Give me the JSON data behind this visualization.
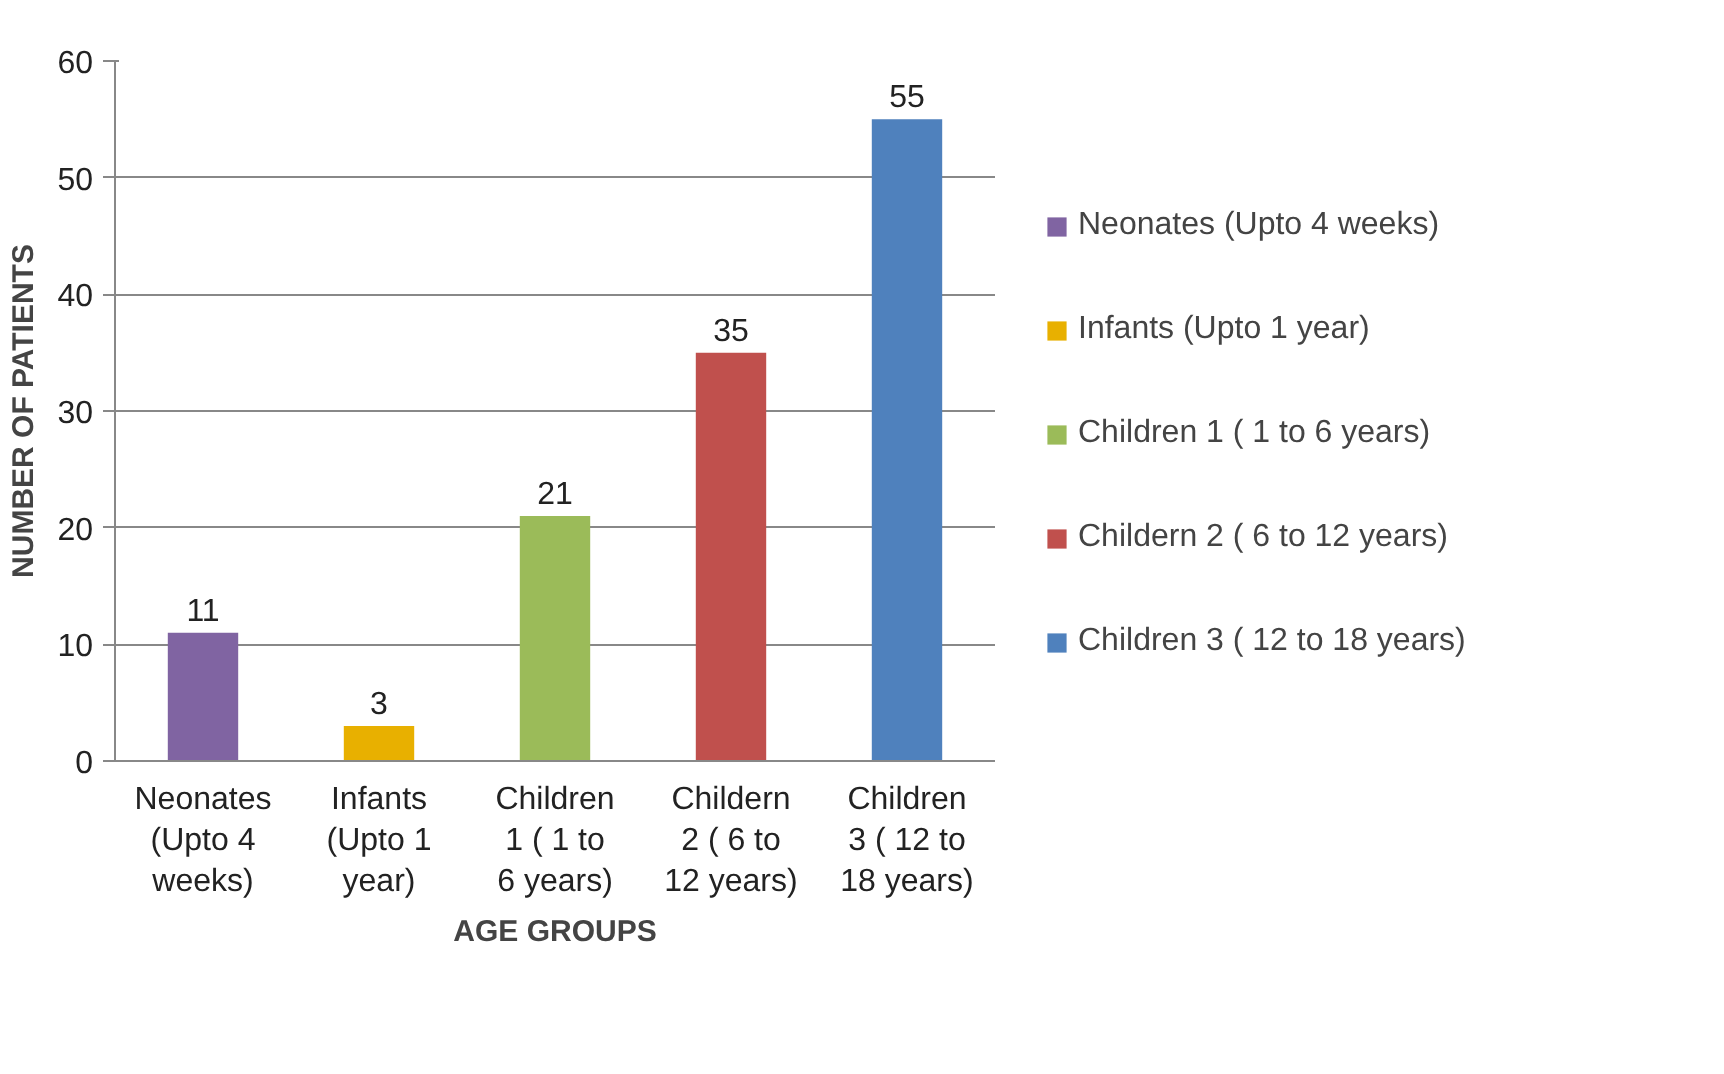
{
  "chart_data": {
    "type": "bar",
    "xlabel": "AGE GROUPS",
    "ylabel": "NUMBER OF PATIENTS",
    "categories": [
      "Neonates (Upto 4 weeks)",
      "Infants (Upto 1 year)",
      "Children 1 ( 1 to 6 years)",
      "Childern 2 ( 6 to 12 years)",
      "Children 3 ( 12 to 18 years)"
    ],
    "series": [
      {
        "name": "Neonates (Upto 4 weeks)",
        "color": "#8064a2",
        "values": [
          11,
          null,
          null,
          null,
          null
        ]
      },
      {
        "name": "Infants (Upto 1 year)",
        "color": "#e8b000",
        "values": [
          null,
          3,
          null,
          null,
          null
        ]
      },
      {
        "name": "Children 1 ( 1 to 6 years)",
        "color": "#9bbb59",
        "values": [
          null,
          null,
          21,
          null,
          null
        ]
      },
      {
        "name": "Childern 2 ( 6 to 12 years)",
        "color": "#c0504d",
        "values": [
          null,
          null,
          null,
          35,
          null
        ]
      },
      {
        "name": "Children 3 ( 12 to 18 years)",
        "color": "#4f81bd",
        "values": [
          null,
          null,
          null,
          null,
          55
        ]
      }
    ],
    "ylim": [
      0,
      60
    ],
    "yticks": [
      0,
      10,
      20,
      30,
      40,
      50,
      60
    ],
    "grid": "y",
    "legend": "right",
    "data_labels": true
  }
}
